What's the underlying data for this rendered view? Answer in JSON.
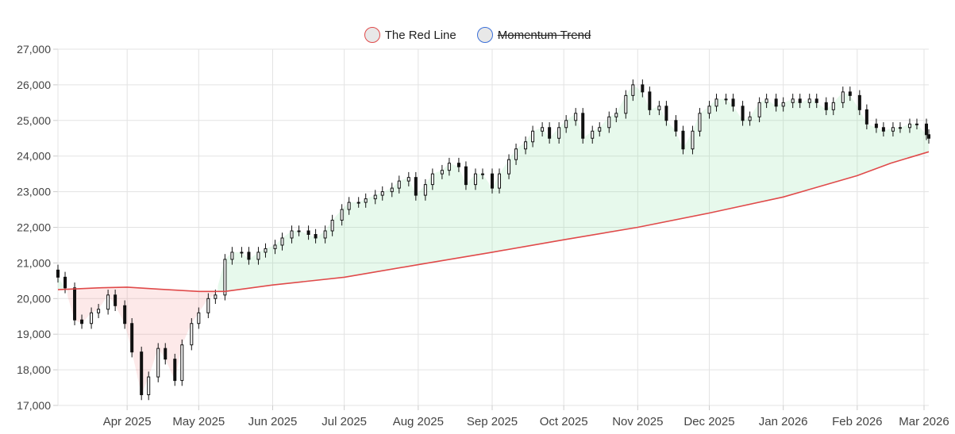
{
  "chart_data": {
    "type": "candlestick",
    "legend": [
      {
        "name": "The Red Line",
        "color": "#e04a4a",
        "hidden": false
      },
      {
        "name": "Momentum Trend",
        "color": "#3a6fd8",
        "hidden": true
      }
    ],
    "legend_position": "top-center",
    "grid": true,
    "ylim": [
      17000,
      27000
    ],
    "y_ticks": [
      "17,000",
      "18,000",
      "19,000",
      "20,000",
      "21,000",
      "22,000",
      "23,000",
      "24,000",
      "25,000",
      "26,000",
      "27,000"
    ],
    "x_tick_labels": [
      "Apr 2025",
      "May 2025",
      "Jun 2025",
      "Jul 2025",
      "Aug 2025",
      "Sep 2025",
      "Oct 2025",
      "Nov 2025",
      "Dec 2025",
      "Jan 2026",
      "Feb 2026",
      "Mar 2026"
    ],
    "x_range": [
      "2025-03-03",
      "2026-03-03"
    ],
    "candles_close": [
      [
        "2025-03-03",
        20600
      ],
      [
        "2025-03-06",
        20300
      ],
      [
        "2025-03-10",
        19400
      ],
      [
        "2025-03-13",
        19300
      ],
      [
        "2025-03-17",
        19600
      ],
      [
        "2025-03-20",
        19700
      ],
      [
        "2025-03-24",
        20100
      ],
      [
        "2025-03-27",
        19800
      ],
      [
        "2025-03-31",
        19300
      ],
      [
        "2025-04-03",
        18500
      ],
      [
        "2025-04-07",
        17300
      ],
      [
        "2025-04-10",
        17800
      ],
      [
        "2025-04-14",
        18600
      ],
      [
        "2025-04-17",
        18300
      ],
      [
        "2025-04-21",
        17700
      ],
      [
        "2025-04-24",
        18700
      ],
      [
        "2025-04-28",
        19300
      ],
      [
        "2025-05-01",
        19600
      ],
      [
        "2025-05-05",
        20000
      ],
      [
        "2025-05-08",
        20100
      ],
      [
        "2025-05-12",
        21100
      ],
      [
        "2025-05-15",
        21300
      ],
      [
        "2025-05-19",
        21300
      ],
      [
        "2025-05-22",
        21100
      ],
      [
        "2025-05-26",
        21300
      ],
      [
        "2025-05-29",
        21400
      ],
      [
        "2025-06-02",
        21500
      ],
      [
        "2025-06-05",
        21700
      ],
      [
        "2025-06-09",
        21900
      ],
      [
        "2025-06-12",
        21900
      ],
      [
        "2025-06-16",
        21800
      ],
      [
        "2025-06-19",
        21700
      ],
      [
        "2025-06-23",
        21900
      ],
      [
        "2025-06-26",
        22200
      ],
      [
        "2025-06-30",
        22500
      ],
      [
        "2025-07-03",
        22700
      ],
      [
        "2025-07-07",
        22700
      ],
      [
        "2025-07-10",
        22800
      ],
      [
        "2025-07-14",
        22900
      ],
      [
        "2025-07-17",
        23000
      ],
      [
        "2025-07-21",
        23100
      ],
      [
        "2025-07-24",
        23300
      ],
      [
        "2025-07-28",
        23400
      ],
      [
        "2025-07-31",
        22900
      ],
      [
        "2025-08-04",
        23200
      ],
      [
        "2025-08-07",
        23500
      ],
      [
        "2025-08-11",
        23600
      ],
      [
        "2025-08-14",
        23800
      ],
      [
        "2025-08-18",
        23700
      ],
      [
        "2025-08-21",
        23200
      ],
      [
        "2025-08-25",
        23500
      ],
      [
        "2025-08-28",
        23500
      ],
      [
        "2025-09-01",
        23100
      ],
      [
        "2025-09-04",
        23500
      ],
      [
        "2025-09-08",
        23900
      ],
      [
        "2025-09-11",
        24200
      ],
      [
        "2025-09-15",
        24400
      ],
      [
        "2025-09-18",
        24700
      ],
      [
        "2025-09-22",
        24800
      ],
      [
        "2025-09-25",
        24500
      ],
      [
        "2025-09-29",
        24800
      ],
      [
        "2025-10-02",
        25000
      ],
      [
        "2025-10-06",
        25200
      ],
      [
        "2025-10-09",
        24500
      ],
      [
        "2025-10-13",
        24700
      ],
      [
        "2025-10-16",
        24800
      ],
      [
        "2025-10-20",
        25100
      ],
      [
        "2025-10-23",
        25200
      ],
      [
        "2025-10-27",
        25700
      ],
      [
        "2025-10-30",
        26000
      ],
      [
        "2025-11-03",
        25800
      ],
      [
        "2025-11-06",
        25300
      ],
      [
        "2025-11-10",
        25400
      ],
      [
        "2025-11-13",
        25000
      ],
      [
        "2025-11-17",
        24700
      ],
      [
        "2025-11-20",
        24200
      ],
      [
        "2025-11-24",
        24700
      ],
      [
        "2025-11-27",
        25200
      ],
      [
        "2025-12-01",
        25400
      ],
      [
        "2025-12-04",
        25600
      ],
      [
        "2025-12-08",
        25600
      ],
      [
        "2025-12-11",
        25400
      ],
      [
        "2025-12-15",
        25000
      ],
      [
        "2025-12-18",
        25100
      ],
      [
        "2025-12-22",
        25500
      ],
      [
        "2025-12-25",
        25600
      ],
      [
        "2025-12-29",
        25400
      ],
      [
        "2026-01-01",
        25500
      ],
      [
        "2026-01-05",
        25600
      ],
      [
        "2026-01-08",
        25500
      ],
      [
        "2026-01-12",
        25600
      ],
      [
        "2026-01-15",
        25500
      ],
      [
        "2026-01-19",
        25300
      ],
      [
        "2026-01-22",
        25500
      ],
      [
        "2026-01-26",
        25800
      ],
      [
        "2026-01-29",
        25700
      ],
      [
        "2026-02-02",
        25300
      ],
      [
        "2026-02-05",
        24900
      ],
      [
        "2026-02-09",
        24800
      ],
      [
        "2026-02-12",
        24700
      ],
      [
        "2026-02-16",
        24800
      ],
      [
        "2026-02-19",
        24800
      ],
      [
        "2026-02-23",
        24900
      ],
      [
        "2026-02-26",
        24900
      ],
      [
        "2026-03-02",
        24600
      ],
      [
        "2026-03-03",
        24500
      ]
    ],
    "red_line": [
      [
        "2025-03-03",
        20250
      ],
      [
        "2025-03-20",
        20300
      ],
      [
        "2025-04-01",
        20320
      ],
      [
        "2025-04-15",
        20260
      ],
      [
        "2025-05-01",
        20200
      ],
      [
        "2025-05-12",
        20200
      ],
      [
        "2025-06-01",
        20380
      ],
      [
        "2025-07-01",
        20600
      ],
      [
        "2025-08-01",
        20950
      ],
      [
        "2025-09-01",
        21300
      ],
      [
        "2025-10-01",
        21650
      ],
      [
        "2025-11-01",
        22000
      ],
      [
        "2025-12-01",
        22400
      ],
      [
        "2026-01-01",
        22850
      ],
      [
        "2026-02-01",
        23450
      ],
      [
        "2026-02-15",
        23800
      ],
      [
        "2026-03-03",
        24120
      ]
    ]
  }
}
